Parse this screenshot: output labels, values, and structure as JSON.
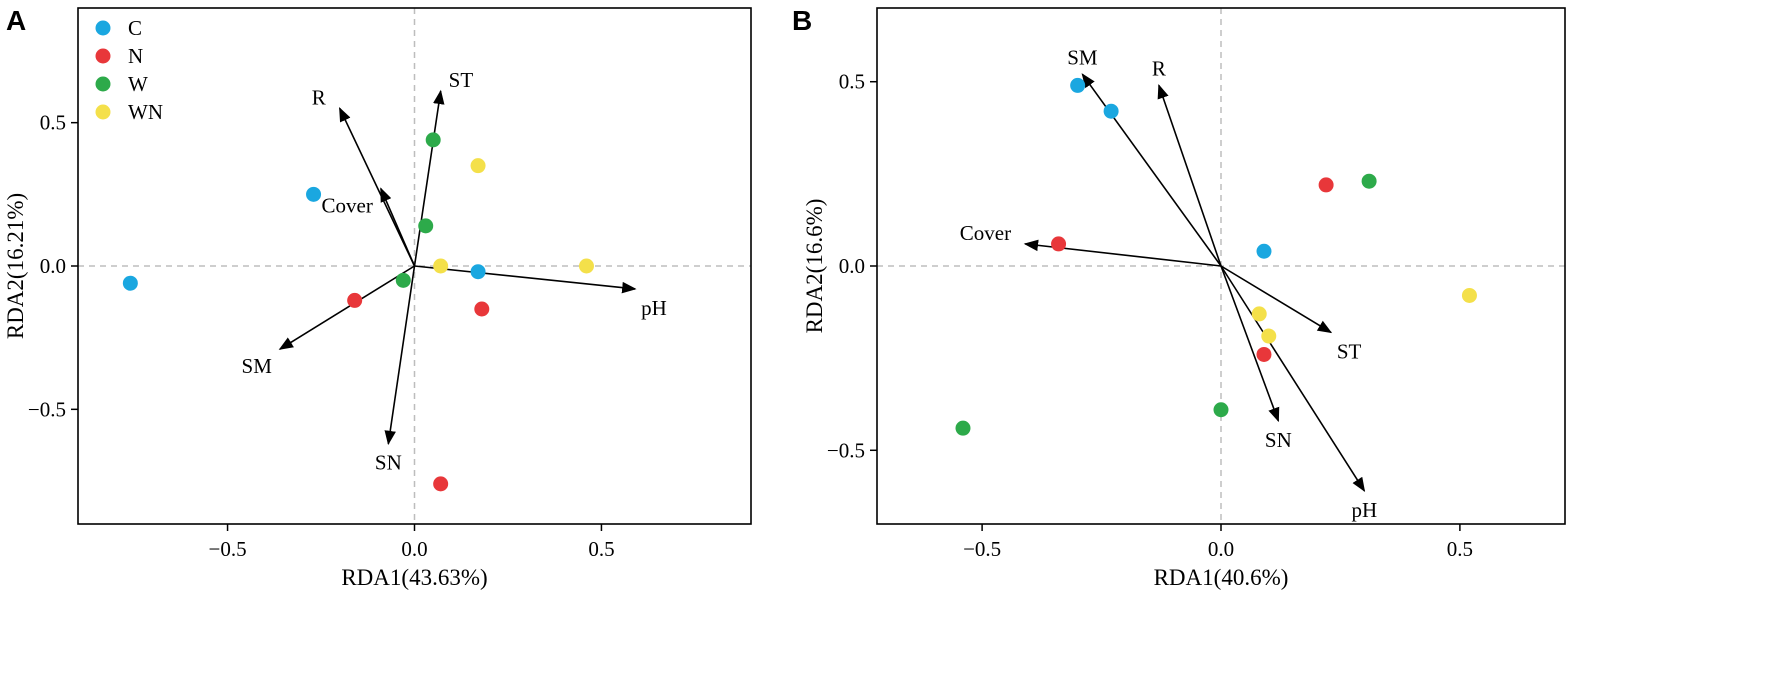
{
  "colors": {
    "C": "#1AA7E0",
    "N": "#E8373A",
    "W": "#2DAA4A",
    "WN": "#F4E04A",
    "axis": "#000000",
    "zero_line": "#BDBDBD"
  },
  "chart_data": [
    {
      "type": "scatter",
      "panel_label": "A",
      "xlabel": "RDA1(43.63%)",
      "ylabel": "RDA2(16.21%)",
      "xlim": [
        -0.9,
        0.9
      ],
      "ylim": [
        -0.9,
        0.9
      ],
      "xticks": [
        -0.5,
        0.0,
        0.5
      ],
      "xtick_labels": [
        "−0.5",
        "0.0",
        "0.5"
      ],
      "yticks": [
        -0.5,
        0.0,
        0.5
      ],
      "ytick_labels": [
        "−0.5",
        "0.0",
        "0.5"
      ],
      "legend": {
        "placement": "top-left",
        "entries": [
          "C",
          "N",
          "W",
          "WN"
        ]
      },
      "series": [
        {
          "name": "C",
          "points": [
            [
              -0.76,
              -0.06
            ],
            [
              -0.27,
              0.25
            ],
            [
              0.17,
              -0.02
            ]
          ]
        },
        {
          "name": "N",
          "points": [
            [
              -0.16,
              -0.12
            ],
            [
              0.18,
              -0.15
            ],
            [
              0.07,
              -0.76
            ]
          ]
        },
        {
          "name": "W",
          "points": [
            [
              0.05,
              0.44
            ],
            [
              0.03,
              0.14
            ],
            [
              -0.03,
              -0.05
            ]
          ]
        },
        {
          "name": "WN",
          "points": [
            [
              0.17,
              0.35
            ],
            [
              0.07,
              0.0
            ],
            [
              0.46,
              0.0
            ]
          ]
        }
      ],
      "arrows": [
        {
          "label": "R",
          "end": [
            -0.2,
            0.55
          ],
          "label_pos": "left"
        },
        {
          "label": "ST",
          "end": [
            0.07,
            0.61
          ],
          "label_pos": "right"
        },
        {
          "label": "Cover",
          "end": [
            -0.09,
            0.27
          ],
          "label_pos": "below-left"
        },
        {
          "label": "pH",
          "end": [
            0.59,
            -0.08
          ],
          "label_pos": "below-right"
        },
        {
          "label": "SM",
          "end": [
            -0.36,
            -0.29
          ],
          "label_pos": "below-left"
        },
        {
          "label": "SN",
          "end": [
            -0.07,
            -0.62
          ],
          "label_pos": "below"
        }
      ]
    },
    {
      "type": "scatter",
      "panel_label": "B",
      "xlabel": "RDA1(40.6%)",
      "ylabel": "RDA2(16.6%)",
      "xlim": [
        -0.72,
        0.72
      ],
      "ylim": [
        -0.7,
        0.7
      ],
      "xticks": [
        -0.5,
        0.0,
        0.5
      ],
      "xtick_labels": [
        "−0.5",
        "0.0",
        "0.5"
      ],
      "yticks": [
        -0.5,
        0.0,
        0.5
      ],
      "ytick_labels": [
        "−0.5",
        "0.0",
        "0.5"
      ],
      "series": [
        {
          "name": "C",
          "points": [
            [
              -0.3,
              0.49
            ],
            [
              -0.23,
              0.42
            ],
            [
              0.09,
              0.04
            ]
          ]
        },
        {
          "name": "N",
          "points": [
            [
              0.22,
              0.22
            ],
            [
              -0.34,
              0.06
            ],
            [
              0.09,
              -0.24
            ]
          ]
        },
        {
          "name": "W",
          "points": [
            [
              0.31,
              0.23
            ],
            [
              0.0,
              -0.39
            ],
            [
              -0.54,
              -0.44
            ]
          ]
        },
        {
          "name": "WN",
          "points": [
            [
              0.52,
              -0.08
            ],
            [
              0.08,
              -0.13
            ],
            [
              0.1,
              -0.19
            ]
          ]
        }
      ],
      "arrows": [
        {
          "label": "SM",
          "end": [
            -0.29,
            0.52
          ],
          "label_pos": "above"
        },
        {
          "label": "R",
          "end": [
            -0.13,
            0.49
          ],
          "label_pos": "above"
        },
        {
          "label": "Cover",
          "end": [
            -0.41,
            0.06
          ],
          "label_pos": "left"
        },
        {
          "label": "ST",
          "end": [
            0.23,
            -0.18
          ],
          "label_pos": "below-right"
        },
        {
          "label": "SN",
          "end": [
            0.12,
            -0.42
          ],
          "label_pos": "below"
        },
        {
          "label": "pH",
          "end": [
            0.3,
            -0.61
          ],
          "label_pos": "below"
        }
      ]
    }
  ]
}
